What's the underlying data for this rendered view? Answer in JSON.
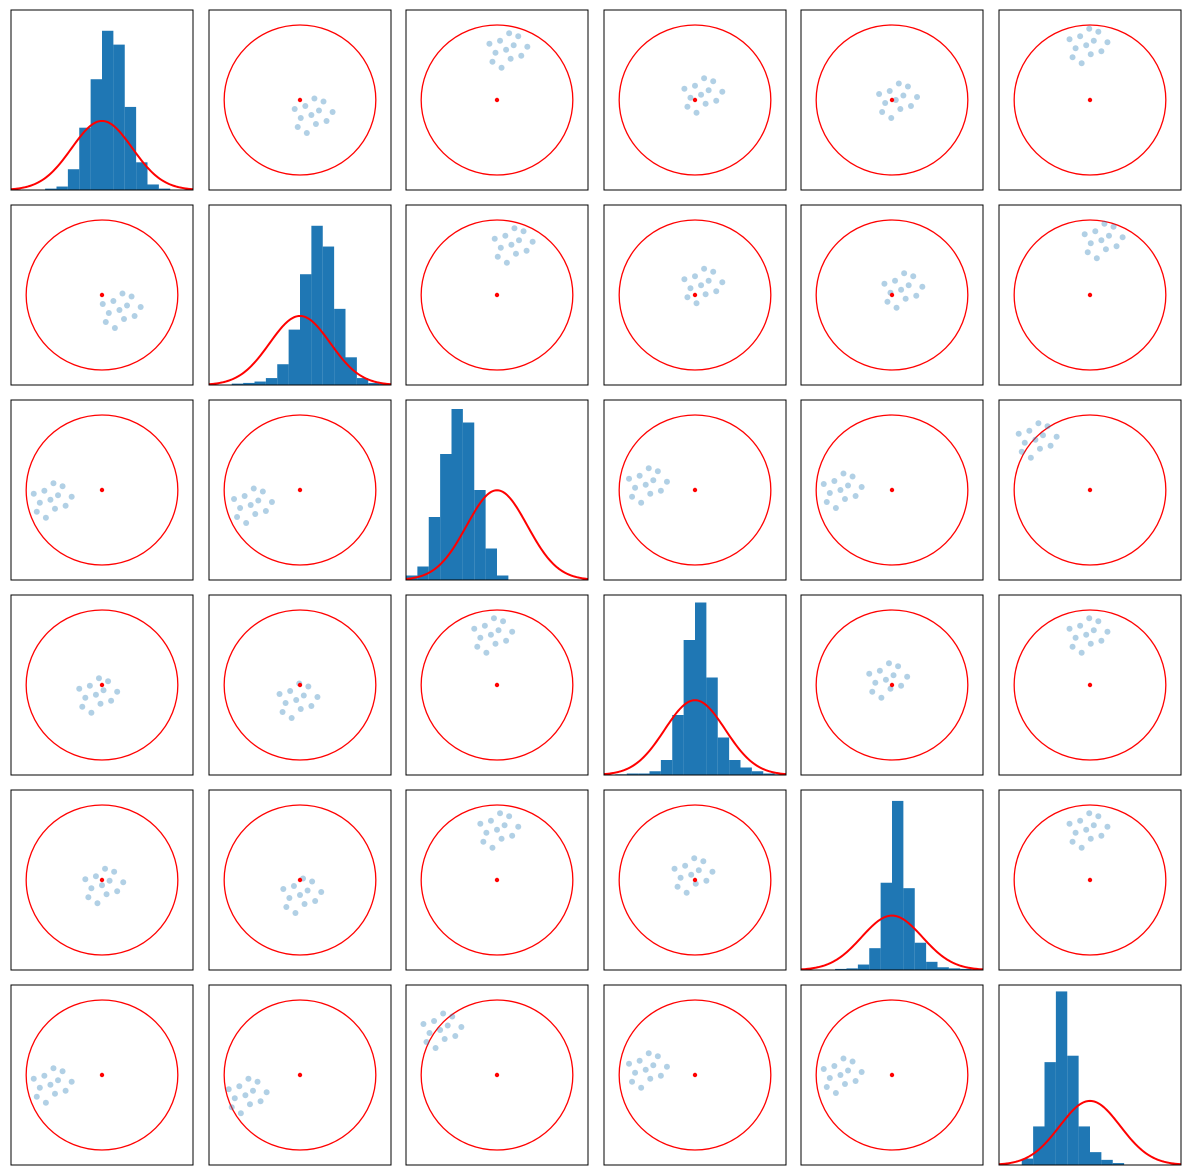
{
  "chart_data": {
    "type": "pair_grid",
    "xlim": [
      -1.2,
      1.2
    ],
    "ylim": [
      -1.2,
      1.2
    ],
    "point_color": "#1f77b4",
    "bar_color": "#1f77b4",
    "circle": {
      "center": [
        0,
        0
      ],
      "radius": 1,
      "color": "#ff0000"
    },
    "gaussian": {
      "mean": 0,
      "sd": 0.4,
      "color": "#ff0000"
    },
    "panels": [
      {
        "type": "histogram",
        "bins": [
          -1.2,
          -1.05,
          -0.9,
          -0.75,
          -0.6,
          -0.45,
          -0.3,
          -0.15,
          0,
          0.15,
          0.3,
          0.45,
          0.6,
          0.75,
          0.9,
          1.05,
          1.2
        ],
        "counts": [
          0,
          0,
          0,
          0.02,
          0.05,
          0.3,
          0.9,
          1.6,
          2.3,
          2.1,
          1.2,
          0.4,
          0.08,
          0.02,
          0,
          0
        ],
        "ylim": [
          0,
          2.6
        ]
      },
      {
        "type": "scatter",
        "x": [
          0.15,
          0.25,
          0.07,
          0.01,
          0.21,
          0.35,
          -0.07,
          0.19,
          0.09,
          0.31,
          -0.03,
          0.43
        ],
        "y": [
          -0.2,
          -0.14,
          -0.08,
          -0.24,
          -0.32,
          -0.28,
          -0.12,
          0.02,
          -0.44,
          -0.02,
          -0.36,
          -0.16
        ]
      },
      {
        "type": "scatter",
        "x": [
          0.12,
          0.22,
          0.04,
          -0.02,
          0.18,
          0.32,
          -0.1,
          0.16,
          0.06,
          0.28,
          -0.06,
          0.4
        ],
        "y": [
          0.67,
          0.73,
          0.79,
          0.63,
          0.55,
          0.59,
          0.75,
          0.89,
          0.43,
          0.85,
          0.51,
          0.71
        ]
      },
      {
        "type": "scatter",
        "x": [
          0.08,
          0.18,
          0,
          -0.06,
          0.14,
          0.28,
          -0.14,
          0.12,
          0.02,
          0.24,
          -0.1,
          0.36
        ],
        "y": [
          0.07,
          0.13,
          0.19,
          0.03,
          -0.05,
          -0.01,
          0.15,
          0.29,
          -0.17,
          0.25,
          -0.09,
          0.11
        ]
      },
      {
        "type": "scatter",
        "x": [
          0.05,
          0.15,
          -0.03,
          -0.09,
          0.11,
          0.25,
          -0.17,
          0.09,
          -0.01,
          0.21,
          -0.13,
          0.33
        ],
        "y": [
          0,
          0.06,
          0.12,
          -0.04,
          -0.12,
          -0.08,
          0.08,
          0.22,
          -0.24,
          0.18,
          -0.16,
          0.04
        ]
      },
      {
        "type": "scatter",
        "x": [
          -0.05,
          0.05,
          -0.13,
          -0.19,
          0.01,
          0.15,
          -0.27,
          -0.01,
          -0.11,
          0.11,
          -0.23,
          0.23
        ],
        "y": [
          0.73,
          0.79,
          0.85,
          0.69,
          0.61,
          0.65,
          0.81,
          0.95,
          0.49,
          0.91,
          0.57,
          0.77
        ]
      },
      {
        "type": "scatter",
        "x": [
          0.23,
          0.33,
          0.15,
          0.09,
          0.29,
          0.43,
          0.01,
          0.27,
          0.17,
          0.39,
          0.05,
          0.51
        ],
        "y": [
          -0.2,
          -0.14,
          -0.08,
          -0.24,
          -0.32,
          -0.28,
          -0.12,
          0.02,
          -0.44,
          -0.02,
          -0.36,
          -0.16
        ]
      },
      {
        "type": "histogram",
        "bins": [
          -1.2,
          -1.05,
          -0.9,
          -0.75,
          -0.6,
          -0.45,
          -0.3,
          -0.15,
          0,
          0.15,
          0.3,
          0.45,
          0.6,
          0.75,
          0.9,
          1.05,
          1.2
        ],
        "counts": [
          0,
          0,
          0.02,
          0.03,
          0.05,
          0.1,
          0.3,
          0.8,
          1.6,
          2.3,
          2.0,
          1.1,
          0.4,
          0.1,
          0.03,
          0.02
        ],
        "ylim": [
          0,
          2.6
        ]
      },
      {
        "type": "scatter",
        "x": [
          0.19,
          0.29,
          0.11,
          0.05,
          0.25,
          0.39,
          -0.03,
          0.23,
          0.13,
          0.35,
          0.01,
          0.47
        ],
        "y": [
          0.67,
          0.73,
          0.79,
          0.63,
          0.55,
          0.59,
          0.75,
          0.89,
          0.43,
          0.85,
          0.51,
          0.71
        ]
      },
      {
        "type": "scatter",
        "x": [
          0.08,
          0.18,
          0,
          -0.06,
          0.14,
          0.28,
          -0.14,
          0.12,
          0.02,
          0.24,
          -0.1,
          0.36
        ],
        "y": [
          0.13,
          0.19,
          0.25,
          0.09,
          0.01,
          0.05,
          0.21,
          0.35,
          -0.11,
          0.31,
          -0.03,
          0.17
        ]
      },
      {
        "type": "scatter",
        "x": [
          0.12,
          0.22,
          0.04,
          -0.02,
          0.18,
          0.32,
          -0.1,
          0.16,
          0.06,
          0.28,
          -0.06,
          0.4
        ],
        "y": [
          0.07,
          0.13,
          0.19,
          0.03,
          -0.05,
          -0.01,
          0.15,
          0.29,
          -0.17,
          0.25,
          -0.09,
          0.11
        ]
      },
      {
        "type": "scatter",
        "x": [
          0.15,
          0.25,
          0.07,
          0.01,
          0.21,
          0.35,
          -0.07,
          0.19,
          0.09,
          0.31,
          -0.03,
          0.43
        ],
        "y": [
          0.73,
          0.79,
          0.85,
          0.69,
          0.61,
          0.65,
          0.81,
          0.95,
          0.49,
          0.91,
          0.57,
          0.77
        ]
      },
      {
        "type": "scatter",
        "x": [
          -0.68,
          -0.58,
          -0.76,
          -0.82,
          -0.62,
          -0.48,
          -0.9,
          -0.64,
          -0.74,
          -0.52,
          -0.86,
          -0.4
        ],
        "y": [
          -0.13,
          -0.07,
          -0.01,
          -0.17,
          -0.25,
          -0.21,
          -0.05,
          0.09,
          -0.37,
          0.05,
          -0.29,
          -0.09
        ]
      },
      {
        "type": "scatter",
        "x": [
          -0.65,
          -0.55,
          -0.73,
          -0.79,
          -0.59,
          -0.45,
          -0.87,
          -0.61,
          -0.71,
          -0.49,
          -0.83,
          -0.37
        ],
        "y": [
          -0.2,
          -0.14,
          -0.08,
          -0.24,
          -0.32,
          -0.28,
          -0.12,
          0.02,
          -0.44,
          -0.02,
          -0.36,
          -0.16
        ]
      },
      {
        "type": "histogram",
        "bins": [
          -1.2,
          -1.05,
          -0.9,
          -0.75,
          -0.6,
          -0.45,
          -0.3,
          -0.15,
          0,
          0.15,
          0.3,
          0.45,
          0.6,
          0.75,
          0.9,
          1.05,
          1.2
        ],
        "counts": [
          0.05,
          0.15,
          0.7,
          1.4,
          1.9,
          1.75,
          1.0,
          0.35,
          0.05,
          0,
          0,
          0,
          0,
          0,
          0,
          0
        ],
        "ylim": [
          0,
          2.0
        ]
      },
      {
        "type": "scatter",
        "x": [
          -0.65,
          -0.55,
          -0.73,
          -0.79,
          -0.59,
          -0.45,
          -0.87,
          -0.61,
          -0.71,
          -0.49,
          -0.83,
          -0.37
        ],
        "y": [
          0.07,
          0.13,
          0.19,
          0.03,
          -0.05,
          -0.01,
          0.15,
          0.29,
          -0.17,
          0.25,
          -0.09,
          0.11
        ]
      },
      {
        "type": "scatter",
        "x": [
          -0.68,
          -0.58,
          -0.76,
          -0.82,
          -0.62,
          -0.48,
          -0.9,
          -0.64,
          -0.74,
          -0.52,
          -0.86,
          -0.4
        ],
        "y": [
          0,
          0.06,
          0.12,
          -0.04,
          -0.12,
          -0.08,
          0.08,
          0.22,
          -0.24,
          0.18,
          -0.16,
          0.04
        ]
      },
      {
        "type": "scatter",
        "x": [
          -0.72,
          -0.62,
          -0.8,
          -0.86,
          -0.66,
          -0.52,
          -0.94,
          -0.68,
          -0.78,
          -0.56,
          -0.9,
          -0.44
        ],
        "y": [
          0.67,
          0.73,
          0.79,
          0.63,
          0.55,
          0.59,
          0.75,
          0.89,
          0.43,
          0.85,
          0.51,
          0.71
        ]
      },
      {
        "type": "scatter",
        "x": [
          -0.08,
          0.02,
          -0.16,
          -0.22,
          -0.02,
          0.12,
          -0.3,
          -0.04,
          -0.14,
          0.08,
          -0.26,
          0.2
        ],
        "y": [
          -0.13,
          -0.07,
          -0.01,
          -0.17,
          -0.25,
          -0.21,
          -0.05,
          0.09,
          -0.37,
          0.05,
          -0.29,
          -0.09
        ]
      },
      {
        "type": "scatter",
        "x": [
          -0.05,
          0.05,
          -0.13,
          -0.19,
          0.01,
          0.15,
          -0.27,
          -0.01,
          -0.11,
          0.11,
          -0.23,
          0.23
        ],
        "y": [
          -0.2,
          -0.14,
          -0.08,
          -0.24,
          -0.32,
          -0.28,
          -0.12,
          0.02,
          -0.44,
          -0.02,
          -0.36,
          -0.16
        ]
      },
      {
        "type": "scatter",
        "x": [
          -0.08,
          0.02,
          -0.16,
          -0.22,
          -0.02,
          0.12,
          -0.3,
          -0.04,
          -0.14,
          0.08,
          -0.26,
          0.2
        ],
        "y": [
          0.67,
          0.73,
          0.79,
          0.63,
          0.55,
          0.59,
          0.75,
          0.89,
          0.43,
          0.85,
          0.51,
          0.71
        ]
      },
      {
        "type": "histogram",
        "bins": [
          -1.2,
          -1.05,
          -0.9,
          -0.75,
          -0.6,
          -0.45,
          -0.3,
          -0.15,
          0,
          0.15,
          0.3,
          0.45,
          0.6,
          0.75,
          0.9,
          1.05,
          1.2
        ],
        "counts": [
          0,
          0.01,
          0.02,
          0.02,
          0.05,
          0.2,
          0.8,
          1.8,
          2.3,
          1.3,
          0.5,
          0.2,
          0.1,
          0.05,
          0.02,
          0.01
        ],
        "ylim": [
          0,
          2.4
        ]
      },
      {
        "type": "scatter",
        "x": [
          -0.08,
          0.02,
          -0.16,
          -0.22,
          -0.02,
          0.12,
          -0.3,
          -0.04,
          -0.14,
          0.08,
          -0.26,
          0.2
        ],
        "y": [
          0.07,
          0.13,
          0.19,
          0.03,
          -0.05,
          -0.01,
          0.15,
          0.29,
          -0.17,
          0.25,
          -0.09,
          0.11
        ]
      },
      {
        "type": "scatter",
        "x": [
          -0.05,
          0.05,
          -0.13,
          -0.19,
          0.01,
          0.15,
          -0.27,
          -0.01,
          -0.11,
          0.11,
          -0.23,
          0.23
        ],
        "y": [
          0.67,
          0.73,
          0.79,
          0.63,
          0.55,
          0.59,
          0.75,
          0.89,
          0.43,
          0.85,
          0.51,
          0.71
        ]
      },
      {
        "type": "scatter",
        "x": [
          0,
          0.1,
          -0.08,
          -0.14,
          0.06,
          0.2,
          -0.22,
          0.04,
          -0.06,
          0.16,
          -0.18,
          0.28
        ],
        "y": [
          -0.07,
          -0.01,
          0.05,
          -0.11,
          -0.19,
          -0.15,
          0.01,
          0.15,
          -0.31,
          0.11,
          -0.23,
          -0.03
        ]
      },
      {
        "type": "scatter",
        "x": [
          0,
          0.1,
          -0.08,
          -0.14,
          0.06,
          0.2,
          -0.22,
          0.04,
          -0.06,
          0.16,
          -0.18,
          0.28
        ],
        "y": [
          -0.2,
          -0.14,
          -0.08,
          -0.24,
          -0.32,
          -0.28,
          -0.12,
          0.02,
          -0.44,
          -0.02,
          -0.36,
          -0.16
        ]
      },
      {
        "type": "scatter",
        "x": [
          0,
          0.1,
          -0.08,
          -0.14,
          0.06,
          0.2,
          -0.22,
          0.04,
          -0.06,
          0.16,
          -0.18,
          0.28
        ],
        "y": [
          0.67,
          0.73,
          0.79,
          0.63,
          0.55,
          0.59,
          0.75,
          0.89,
          0.43,
          0.85,
          0.51,
          0.71
        ]
      },
      {
        "type": "scatter",
        "x": [
          -0.05,
          0.05,
          -0.13,
          -0.19,
          0.01,
          0.15,
          -0.27,
          -0.01,
          -0.11,
          0.11,
          -0.23,
          0.23
        ],
        "y": [
          0.07,
          0.13,
          0.19,
          0.03,
          -0.05,
          -0.01,
          0.15,
          0.29,
          -0.17,
          0.25,
          -0.09,
          0.11
        ]
      },
      {
        "type": "histogram",
        "bins": [
          -1.2,
          -1.05,
          -0.9,
          -0.75,
          -0.6,
          -0.45,
          -0.3,
          -0.15,
          0,
          0.15,
          0.3,
          0.45,
          0.6,
          0.75,
          0.9,
          1.05,
          1.2
        ],
        "counts": [
          0,
          0,
          0,
          0.02,
          0.03,
          0.1,
          0.4,
          1.6,
          3.1,
          1.5,
          0.5,
          0.15,
          0.05,
          0.03,
          0.02,
          0.01
        ],
        "ylim": [
          0,
          3.3
        ]
      },
      {
        "type": "scatter",
        "x": [
          -0.05,
          0.05,
          -0.13,
          -0.19,
          0.01,
          0.15,
          -0.27,
          -0.01,
          -0.11,
          0.11,
          -0.23,
          0.23
        ],
        "y": [
          0.67,
          0.73,
          0.79,
          0.63,
          0.55,
          0.59,
          0.75,
          0.89,
          0.43,
          0.85,
          0.51,
          0.71
        ]
      },
      {
        "type": "scatter",
        "x": [
          -0.68,
          -0.58,
          -0.76,
          -0.82,
          -0.62,
          -0.48,
          -0.9,
          -0.64,
          -0.74,
          -0.52,
          -0.86,
          -0.4
        ],
        "y": [
          -0.13,
          -0.07,
          -0.01,
          -0.17,
          -0.25,
          -0.21,
          -0.05,
          0.09,
          -0.37,
          0.05,
          -0.29,
          -0.09
        ]
      },
      {
        "type": "scatter",
        "x": [
          -0.72,
          -0.62,
          -0.8,
          -0.86,
          -0.66,
          -0.52,
          -0.94,
          -0.68,
          -0.78,
          -0.56,
          -0.9,
          -0.44
        ],
        "y": [
          -0.27,
          -0.21,
          -0.15,
          -0.31,
          -0.39,
          -0.35,
          -0.19,
          -0.05,
          -0.51,
          -0.09,
          -0.43,
          -0.23
        ]
      },
      {
        "type": "scatter",
        "x": [
          -0.75,
          -0.65,
          -0.83,
          -0.89,
          -0.69,
          -0.55,
          -0.97,
          -0.71,
          -0.81,
          -0.59,
          -0.93,
          -0.47
        ],
        "y": [
          0.6,
          0.66,
          0.72,
          0.56,
          0.48,
          0.52,
          0.68,
          0.82,
          0.36,
          0.78,
          0.44,
          0.64
        ]
      },
      {
        "type": "scatter",
        "x": [
          -0.65,
          -0.55,
          -0.73,
          -0.79,
          -0.59,
          -0.45,
          -0.87,
          -0.61,
          -0.71,
          -0.49,
          -0.83,
          -0.37
        ],
        "y": [
          0.07,
          0.13,
          0.19,
          0.03,
          -0.05,
          -0.01,
          0.15,
          0.29,
          -0.17,
          0.25,
          -0.09,
          0.11
        ]
      },
      {
        "type": "scatter",
        "x": [
          -0.68,
          -0.58,
          -0.76,
          -0.82,
          -0.62,
          -0.48,
          -0.9,
          -0.64,
          -0.74,
          -0.52,
          -0.86,
          -0.4
        ],
        "y": [
          0,
          0.06,
          0.12,
          -0.04,
          -0.12,
          -0.08,
          0.08,
          0.22,
          -0.24,
          0.18,
          -0.16,
          0.04
        ]
      },
      {
        "type": "histogram",
        "bins": [
          -1.2,
          -1.05,
          -0.9,
          -0.75,
          -0.6,
          -0.45,
          -0.3,
          -0.15,
          0,
          0.15,
          0.3,
          0.45,
          0.6,
          0.75,
          0.9,
          1.05,
          1.2
        ],
        "counts": [
          0,
          0,
          0.1,
          0.6,
          1.6,
          2.7,
          1.7,
          0.6,
          0.2,
          0.08,
          0.03,
          0,
          0,
          0,
          0,
          0
        ],
        "ylim": [
          0,
          2.8
        ]
      }
    ]
  }
}
